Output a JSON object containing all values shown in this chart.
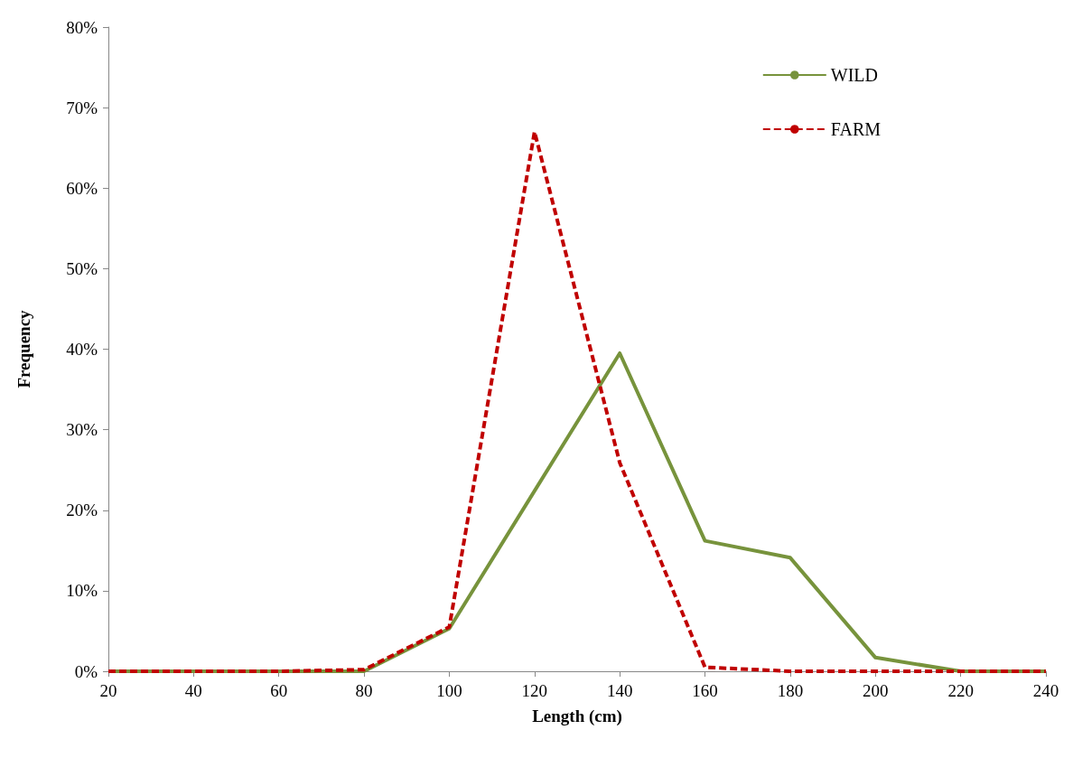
{
  "chart_data": {
    "type": "line",
    "xlabel": "Length (cm)",
    "ylabel": "Frequency",
    "x": [
      20,
      40,
      60,
      80,
      100,
      120,
      140,
      160,
      180,
      200,
      220,
      240
    ],
    "series": [
      {
        "name": "WILD",
        "color": "#77933c",
        "line_style": "solid",
        "values": [
          0,
          0,
          0,
          0,
          5.3,
          22.4,
          39.5,
          16.2,
          14.1,
          1.7,
          0,
          0
        ]
      },
      {
        "name": "FARM",
        "color": "#c00000",
        "line_style": "dashed",
        "values": [
          0,
          0,
          0,
          0.2,
          5.5,
          67,
          25.9,
          0.5,
          0,
          0,
          0,
          0
        ]
      }
    ],
    "xlim": [
      20,
      240
    ],
    "xticks": [
      20,
      40,
      60,
      80,
      100,
      120,
      140,
      160,
      180,
      200,
      220,
      240
    ],
    "ylim": [
      0,
      80
    ],
    "yticks": [
      {
        "value": 0,
        "label": "0%"
      },
      {
        "value": 10,
        "label": "10%"
      },
      {
        "value": 20,
        "label": "20%"
      },
      {
        "value": 30,
        "label": "30%"
      },
      {
        "value": 40,
        "label": "40%"
      },
      {
        "value": 50,
        "label": "50%"
      },
      {
        "value": 60,
        "label": "60%"
      },
      {
        "value": 70,
        "label": "70%"
      },
      {
        "value": 80,
        "label": "80%"
      }
    ],
    "grid": false,
    "legend": "top right",
    "marker": "none"
  }
}
